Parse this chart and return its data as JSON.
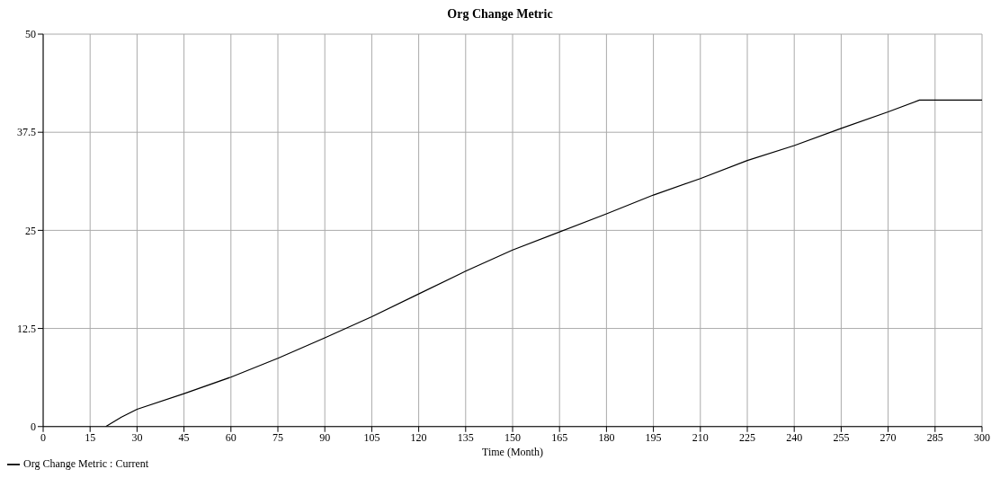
{
  "chart_data": {
    "type": "line",
    "title": "Org Change Metric",
    "xlabel": "Time (Month)",
    "series": [
      {
        "name": "Org Change Metric : Current",
        "color": "#000000",
        "x": [
          20,
          25,
          30,
          45,
          60,
          75,
          90,
          105,
          120,
          135,
          150,
          165,
          180,
          195,
          210,
          225,
          240,
          255,
          270,
          280,
          300
        ],
        "values": [
          0,
          1.2,
          2.2,
          4.2,
          6.3,
          8.7,
          11.3,
          14,
          16.9,
          19.8,
          22.5,
          24.8,
          27.1,
          29.5,
          31.6,
          33.9,
          35.8,
          38,
          40.1,
          41.6,
          41.6
        ]
      }
    ],
    "xlim": [
      0,
      300
    ],
    "xticks": [
      0,
      15,
      30,
      45,
      60,
      75,
      90,
      105,
      120,
      135,
      150,
      165,
      180,
      195,
      210,
      225,
      240,
      255,
      270,
      285,
      300
    ],
    "ylim": [
      0,
      50
    ],
    "yticks": [
      0,
      12.5,
      25,
      37.5,
      50
    ],
    "grid": true,
    "legend": "bottom left",
    "marker": "none",
    "line_style": "solid"
  }
}
